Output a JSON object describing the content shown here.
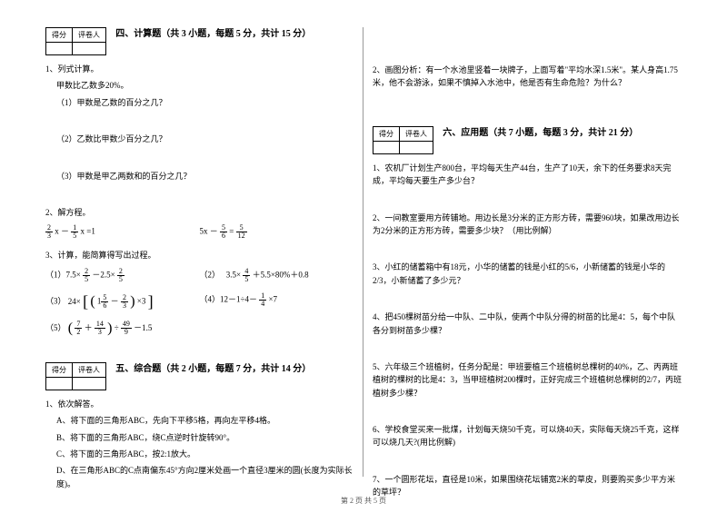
{
  "score_header": {
    "col1": "得分",
    "col2": "评卷人"
  },
  "sec4": {
    "title": "四、计算题（共 3 小题，每题 5 分，共计 15 分）",
    "q1": "1、列式计算。",
    "q1a": "甲数比乙数多20%。",
    "q1_1": "（1）甲数是乙数的百分之几？",
    "q1_2": "（2）乙数比甲数少百分之几？",
    "q1_3": "（3）甲数是甲乙两数和的百分之几？",
    "q2": "2、解方程。",
    "q2_eq1a": {
      "f1n": "2",
      "f1d": "3",
      "f2n": "1",
      "f2d": "5",
      "txt": " x － ",
      " tail": " x =1"
    },
    "q2_eq1b": {
      "pre": "5x － ",
      "f1n": "5",
      "f1d": "6",
      "mid": " = ",
      "f2n": "5",
      "f2d": "12"
    },
    "q3": "3、计算，能简算得写出过程。",
    "q3_1": {
      "label": "（1）7.5×",
      "f1n": "2",
      "f1d": "5",
      "mid": "－2.5×",
      "f2n": "2",
      "f2d": "5"
    },
    "q3_2": {
      "label": "（2）　",
      "f1n": "4",
      "f1d": "5",
      "pre": "3.5×",
      "mid": "＋5.5×80%＋0.8"
    },
    "q3_3": {
      "label": "（3）",
      "pre": "24×",
      "b1": "[",
      "p1": "(",
      "f1n": "5",
      "f1d": "6",
      "mid": "－",
      "f2n": "2",
      "f2d": "3",
      "p2": ")",
      "x": "×3",
      "b2": "]"
    },
    "q3_4": {
      "label": "（4）12－1÷4－",
      "f1n": "1",
      "f1d": "4",
      "tail": "×7"
    },
    "q3_5": {
      "label": "（5）",
      "p1": "(",
      "f1n": "7",
      "f1d": "2",
      "mid": "＋",
      "f2n": "14",
      "f2d": "3",
      "p2": ")",
      "x": "÷",
      "f3n": "49",
      "f3d": "9",
      "tail": "－1.5"
    }
  },
  "sec5": {
    "title": "五、综合题（共 2 小题，每题 7 分，共计 14 分）",
    "q1": "1、依次解答。",
    "q1a": "A、将下面的三角形ABC，先向下平移5格，再向左平移4格。",
    "q1b": "B、将下面的三角形ABC，绕C点逆时针旋转90°。",
    "q1c": "C、将下面的三角形ABC，按2:1放大。",
    "q1d": "D、在三角形ABC的C点南偏东45°方向2厘米处画一个直径3厘米的圆(长度为实际长度)。",
    "q2": "2、画图分析：有一个水池里竖着一块牌子，上面写着\"平均水深1.5米\"。某人身高1.75米，他不会游泳，如果不慎掉入水池中，他是否有生命危险？为什么？"
  },
  "sec6": {
    "title": "六、应用题（共 7 小题，每题 3 分，共计 21 分）",
    "q1": "1、农机厂计划生产800台，平均每天生产44台，生产了10天，余下的任务要求8天完成，平均每天要生产多少台？",
    "q2": "2、一间教室要用方砖铺地。用边长是3分米的正方形方砖，需要960块，如果改用边长为2分米的正方形方砖，需要多少块？（用比例解）",
    "q3": "3、小红的储蓄箱中有18元，小华的储蓄的钱是小红的5/6，小新储蓄的钱是小华的2/3，小新储蓄了多少元？",
    "q4": "4、把450棵树苗分给一中队、二中队，使两个中队分得的树苗的比是4：5，每个中队各分到树苗多少棵？",
    "q5": "5、六年级三个班植树，任务分配是：甲班要植三个班植树总棵树的40%，乙、丙两班植树的棵树的比是4：3，当甲班植树200棵时，正好完成三个班植树总棵树的2/7，丙班植树多少棵？",
    "q6": "6、学校食堂买来一批煤，计划每天烧50千克，可以烧40天，实际每天烧25千克，这样可以烧几天?(用比例解)",
    "q7": "7、一个圆形花坛，直径是10米，如果围绕花坛铺宽2米的草皮，则要购买多少平方米的草坪？"
  },
  "footer": "第 2 页 共 5 页"
}
